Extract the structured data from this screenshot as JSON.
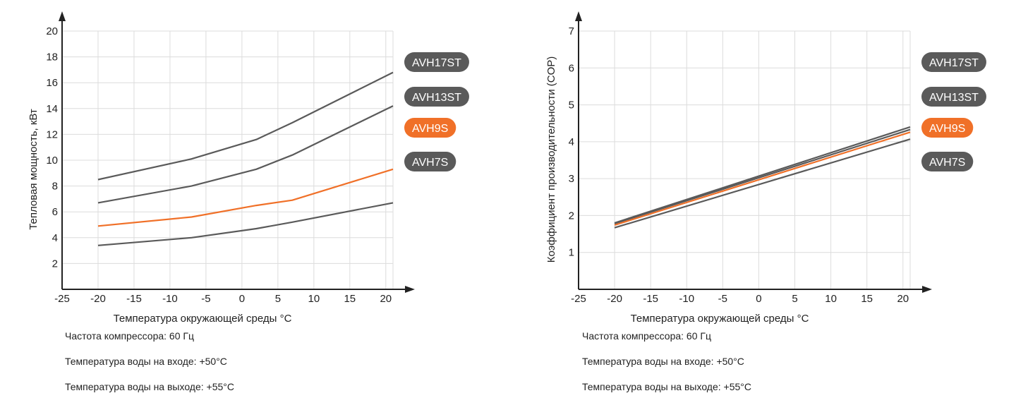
{
  "colors": {
    "dark": "#5a5a5a",
    "accent": "#f07028",
    "grid": "#dcdcdc"
  },
  "chart_data": [
    {
      "type": "line",
      "ylabel": "Тепловая мощность, кВт",
      "xlabel": "Температура окружающей среды °C",
      "xlim": [
        -25,
        21
      ],
      "ylim": [
        0,
        20
      ],
      "xticks": [
        -25,
        -20,
        -15,
        -10,
        -5,
        0,
        5,
        10,
        15,
        20
      ],
      "yticks": [
        2,
        4,
        6,
        8,
        10,
        12,
        14,
        16,
        18,
        20
      ],
      "grid": true,
      "legend": "right",
      "series": [
        {
          "name": "AVH17ST",
          "color": "#5a5a5a",
          "x": [
            -20,
            -7,
            2,
            7,
            21
          ],
          "y": [
            8.5,
            10.1,
            11.6,
            12.9,
            16.8
          ]
        },
        {
          "name": "AVH13ST",
          "color": "#5a5a5a",
          "x": [
            -20,
            -7,
            2,
            7,
            21
          ],
          "y": [
            6.7,
            8.0,
            9.3,
            10.4,
            14.2
          ]
        },
        {
          "name": "AVH9S",
          "color": "#f07028",
          "x": [
            -20,
            -7,
            2,
            7,
            21
          ],
          "y": [
            4.9,
            5.6,
            6.5,
            6.9,
            9.3
          ]
        },
        {
          "name": "AVH7S",
          "color": "#5a5a5a",
          "x": [
            -20,
            -7,
            2,
            7,
            21
          ],
          "y": [
            3.4,
            4.0,
            4.7,
            5.2,
            6.7
          ]
        }
      ]
    },
    {
      "type": "line",
      "ylabel": "Коэффициент производительности (COP)",
      "xlabel": "Температура окружающей среды °C",
      "xlim": [
        -25,
        21
      ],
      "ylim": [
        0,
        7
      ],
      "xticks": [
        -25,
        -20,
        -15,
        -10,
        -5,
        0,
        5,
        10,
        15,
        20
      ],
      "yticks": [
        1,
        2,
        3,
        4,
        5,
        6,
        7
      ],
      "grid": true,
      "legend": "right",
      "series": [
        {
          "name": "AVH17ST",
          "color": "#5a5a5a",
          "x": [
            -20,
            21
          ],
          "y": [
            1.8,
            4.4
          ]
        },
        {
          "name": "AVH13ST",
          "color": "#5a5a5a",
          "x": [
            -20,
            21
          ],
          "y": [
            1.78,
            4.33
          ]
        },
        {
          "name": "AVH9S",
          "color": "#f07028",
          "x": [
            -20,
            21
          ],
          "y": [
            1.74,
            4.26
          ]
        },
        {
          "name": "AVH7S",
          "color": "#5a5a5a",
          "x": [
            -20,
            21
          ],
          "y": [
            1.67,
            4.07
          ]
        }
      ]
    }
  ],
  "notes": [
    "Частота компрессора: 60 Гц",
    "Температура воды на входе: +50°C",
    "Температура воды на выходе: +55°C"
  ]
}
